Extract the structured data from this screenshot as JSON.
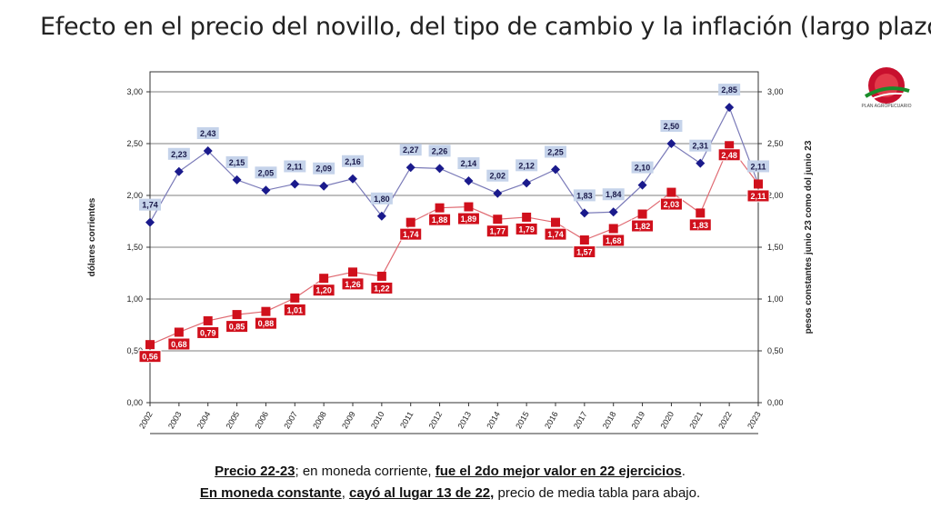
{
  "title": "Efecto en el precio del novillo, del tipo de cambio y la inflación (largo plazo)",
  "logo": {
    "name": "logo-plan-agropecuario",
    "text": "PLAN AGROPECUARIO",
    "color": "#c8102e"
  },
  "caption": {
    "line1": {
      "b1": "Precio 22-23",
      "t1": "; en moneda corriente, ",
      "b2": "fue el 2do mejor valor en 22 ejercicios",
      "t2": "."
    },
    "line2": {
      "b1": "En moneda constante",
      "t1": ", ",
      "b2": "cayó al lugar 13 de 22,",
      "t2": " precio de media tabla para abajo."
    }
  },
  "chart_data": {
    "type": "line",
    "ylabel": "dólares corrientes",
    "y2label": "pesos constantes junio  23 como  dol junio 23",
    "ylim": [
      0,
      3
    ],
    "y2lim": [
      0,
      3
    ],
    "yticks": [
      "0,00",
      "0,50",
      "1,00",
      "1,50",
      "2,00",
      "2,50",
      "3,00"
    ],
    "y2ticks": [
      "0,00",
      "0,50",
      "1,00",
      "1,50",
      "2,00",
      "2,50",
      "3,00"
    ],
    "categories": [
      "2002",
      "2003",
      "2004",
      "2005",
      "2006",
      "2007",
      "2008",
      "2009",
      "2010",
      "2011",
      "2012",
      "2013",
      "2014",
      "2015",
      "2016",
      "2017",
      "2018",
      "2019",
      "2020",
      "2021",
      "2022",
      "2023"
    ],
    "grid": true,
    "series": [
      {
        "axis": "left",
        "color": "#1a1a8c",
        "label_bg": "#c5d3ea",
        "label_fg": "#1a1a4a",
        "marker": "diamond",
        "values": [
          1.74,
          2.23,
          2.43,
          2.15,
          2.05,
          2.11,
          2.09,
          2.16,
          1.8,
          2.27,
          2.26,
          2.14,
          2.02,
          2.12,
          2.25,
          1.83,
          1.84,
          2.1,
          2.5,
          2.31,
          2.85,
          2.11
        ],
        "labels": [
          "1,74",
          "2,23",
          "2,43",
          "2,15",
          "2,05",
          "2,11",
          "2,09",
          "2,16",
          "1,80",
          "2,27",
          "2,26",
          "2,14",
          "2,02",
          "2,12",
          "2,25",
          "1,83",
          "1,84",
          "2,10",
          "2,50",
          "2,31",
          "2,85",
          "2,11"
        ]
      },
      {
        "axis": "right",
        "color": "#d0101c",
        "label_bg": "#d0101c",
        "label_fg": "#ffffff",
        "marker": "square",
        "values": [
          0.56,
          0.68,
          0.79,
          0.85,
          0.88,
          1.01,
          1.2,
          1.26,
          1.22,
          1.74,
          1.88,
          1.89,
          1.77,
          1.79,
          1.74,
          1.57,
          1.68,
          1.82,
          2.03,
          1.83,
          2.48,
          2.11
        ],
        "labels": [
          "0,56",
          "0,68",
          "0,79",
          "0,85",
          "0,88",
          "1,01",
          "1,20",
          "1,26",
          "1,22",
          "1,74",
          "1,88",
          "1,89",
          "1,77",
          "1,79",
          "1,74",
          "1,57",
          "1,68",
          "1,82",
          "2,03",
          "1,83",
          "2,48",
          "2,11"
        ]
      }
    ]
  }
}
